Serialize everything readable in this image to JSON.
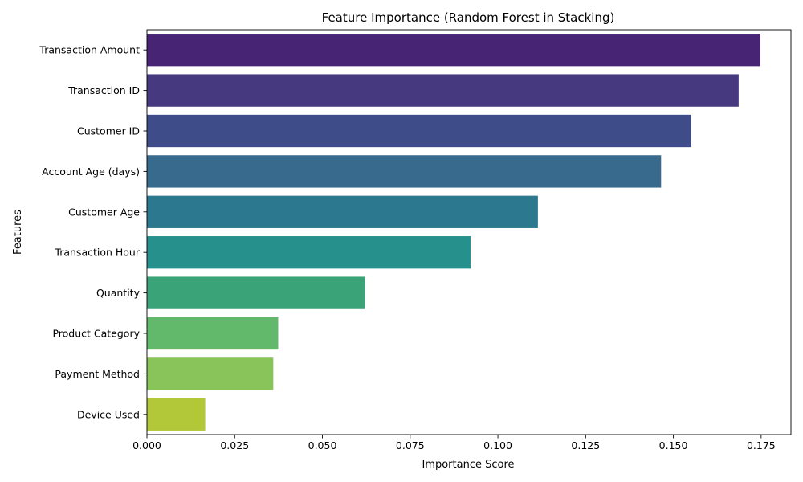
{
  "chart_data": {
    "type": "bar",
    "orientation": "horizontal",
    "title": "Feature Importance (Random Forest in Stacking)",
    "xlabel": "Importance Score",
    "ylabel": "Features",
    "categories": [
      "Transaction Amount",
      "Transaction ID",
      "Customer ID",
      "Account Age (days)",
      "Customer Age",
      "Transaction Hour",
      "Quantity",
      "Product Category",
      "Payment Method",
      "Device Used"
    ],
    "values": [
      0.1748,
      0.1686,
      0.1551,
      0.1465,
      0.1114,
      0.0922,
      0.0621,
      0.0374,
      0.036,
      0.0166
    ],
    "colors": [
      "#482475",
      "#46397f",
      "#3e4c8a",
      "#376a8c",
      "#2c788e",
      "#25908c",
      "#3aa377",
      "#62b96c",
      "#88c45a",
      "#b2c839"
    ],
    "xlim": [
      0,
      0.1835
    ],
    "xticks": [
      "0.000",
      "0.025",
      "0.050",
      "0.075",
      "0.100",
      "0.125",
      "0.150",
      "0.175"
    ],
    "grid": false,
    "legend": "none"
  }
}
